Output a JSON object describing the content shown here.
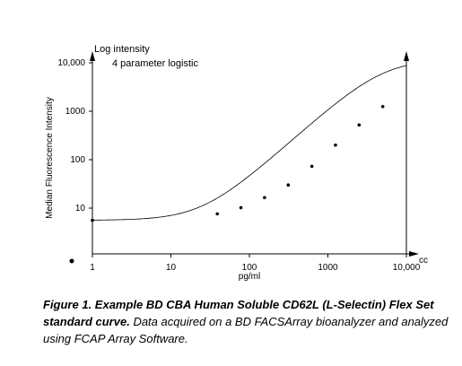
{
  "chart_data": {
    "type": "line",
    "x_scale": "log",
    "y_scale": "log",
    "xlim": [
      1,
      10000
    ],
    "ylim": [
      1,
      10000
    ],
    "x_ticks": [
      "1",
      "10",
      "100",
      "1000",
      "10,000"
    ],
    "y_ticks": [
      "10",
      "100",
      "1000",
      "10,000"
    ],
    "xlabel": "pg/ml",
    "ylabel": "Median Fluorescence Intensity",
    "y_axis_note": "Log intensity",
    "x_axis_note": "cc",
    "fit_label": "4 parameter logistic",
    "grid": false,
    "fit_model": {
      "min": 5.6,
      "max": 12000,
      "ec50": 5000,
      "hill": 1.45
    },
    "series": [
      {
        "points": [
          {
            "x": 1,
            "y": 5.6
          },
          {
            "x": 39,
            "y": 7.6
          },
          {
            "x": 78,
            "y": 10.2
          },
          {
            "x": 156,
            "y": 16.5
          },
          {
            "x": 312.5,
            "y": 30
          },
          {
            "x": 625,
            "y": 73
          },
          {
            "x": 1250,
            "y": 200
          },
          {
            "x": 2500,
            "y": 520
          },
          {
            "x": 5000,
            "y": 1250
          }
        ]
      }
    ]
  },
  "caption": {
    "bold": "Figure 1. Example BD CBA Human Soluble CD62L (L-Selectin) Flex Set standard curve.",
    "text": " Data acquired on a BD FACSArray bioanalyzer and analyzed using FCAP Array Software."
  }
}
